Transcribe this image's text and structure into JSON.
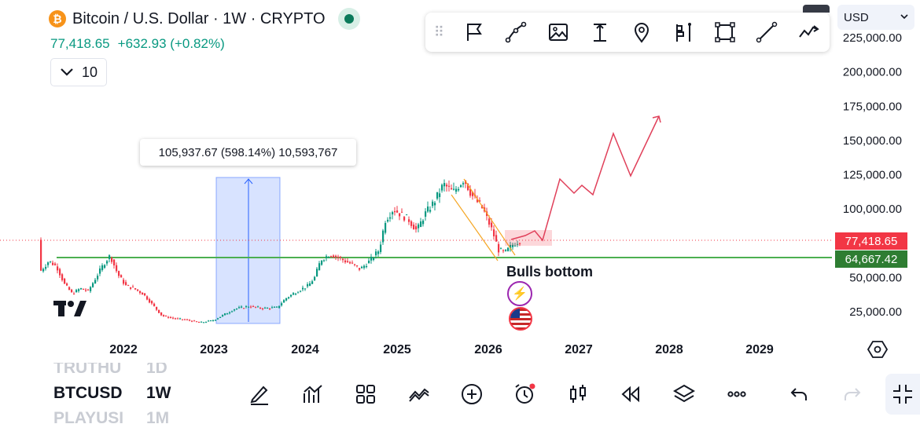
{
  "header": {
    "logo_symbol": "₿",
    "title": "Bitcoin / U.S. Dollar · 1W · CRYPTO",
    "price": "77,418.65",
    "change": "+632.93 (+0.82%)",
    "interval_value": "10",
    "currency": "USD"
  },
  "drawing_toolbar": {
    "tools": [
      "flag-icon",
      "trendline-icon",
      "image-icon",
      "text-cursor-icon",
      "pin-icon",
      "long-position-icon",
      "rectangle-icon",
      "line-icon",
      "path-icon"
    ]
  },
  "chart_data": {
    "type": "candlestick",
    "y_ticks": [
      "225,000.00",
      "200,000.00",
      "175,000.00",
      "150,000.00",
      "125,000.00",
      "100,000.00",
      "50,000.00",
      "25,000.00"
    ],
    "x_ticks": [
      "2022",
      "2023",
      "2024",
      "2025",
      "2026",
      "2027",
      "2028",
      "2029"
    ],
    "current_price_label": "77,418.65",
    "support_label": "64,667.42",
    "support_value": 64667.42,
    "current_value": 77418.65,
    "measure_label": "105,937.67 (598.14%) 10,593,767",
    "annotation": "Bulls bottom",
    "colors": {
      "up": "#089981",
      "down": "#f23645",
      "support": "#4caf50",
      "projection": "#e0405a",
      "measure": "#2962ff"
    }
  },
  "bottom_bar": {
    "symbols": [
      {
        "symbol": "TRUTHU",
        "interval": "1D"
      },
      {
        "symbol": "BTCUSD",
        "interval": "1W"
      },
      {
        "symbol": "PLAYUSI",
        "interval": "1M"
      }
    ],
    "icons": [
      "draw-icon",
      "indicators-icon",
      "layouts-icon",
      "compare-icon",
      "add-icon",
      "alert-icon",
      "chart-type-icon",
      "replay-icon",
      "layers-icon",
      "more-icon",
      "undo-icon",
      "redo-icon",
      "fullscreen-exit-icon"
    ]
  }
}
